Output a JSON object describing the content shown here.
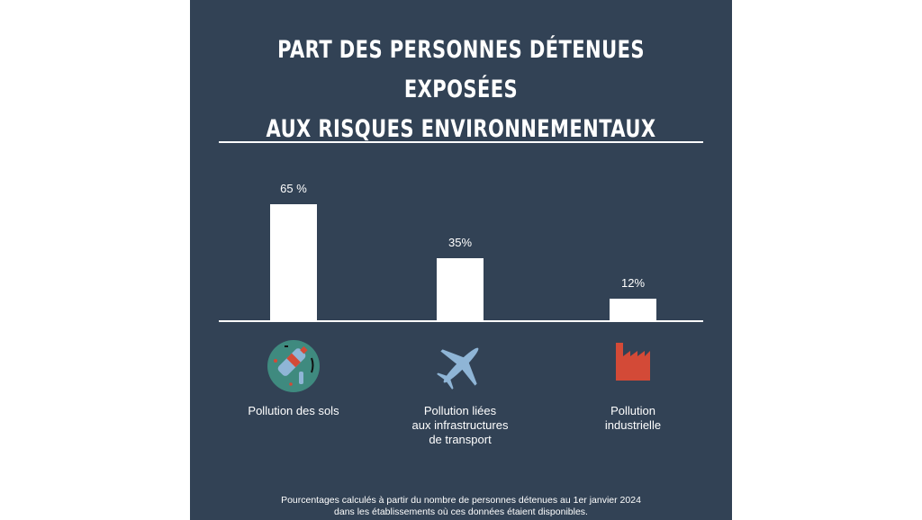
{
  "chart_data": {
    "type": "bar",
    "title": "PART DES PERSONNES DÉTENUES EXPOSÉES AUX RISQUES ENVIRONNEMENTAUX",
    "title_lines": [
      "PART DES PERSONNES DÉTENUES EXPOSÉES",
      "AUX RISQUES ENVIRONNEMENTAUX"
    ],
    "categories": [
      "Pollution des sols",
      "Pollution liées aux infrastructures de transport",
      "Pollution industrielle"
    ],
    "category_lines": [
      [
        "Pollution des sols"
      ],
      [
        "Pollution liées",
        "aux infrastructures",
        "de transport"
      ],
      [
        "Pollution",
        "industrielle"
      ]
    ],
    "values": [
      65,
      35,
      12
    ],
    "value_labels": [
      "65 %",
      "35%",
      "12%"
    ],
    "icons": [
      "soil-pollution-icon",
      "airplane-icon",
      "factory-icon"
    ],
    "unit": "%",
    "ylim": [
      0,
      100
    ],
    "grid": false,
    "xlabel": "",
    "ylabel": ""
  },
  "footnote": [
    "Pourcentages calculés à partir du nombre de personnes détenues au 1er janvier 2024",
    "dans les établissements où ces données étaient disponibles."
  ],
  "colors": {
    "background": "#324255",
    "bar": "#ffffff",
    "soil": "#3f8a7f",
    "plane": "#8fb5d6",
    "factory": "#d34a37"
  }
}
